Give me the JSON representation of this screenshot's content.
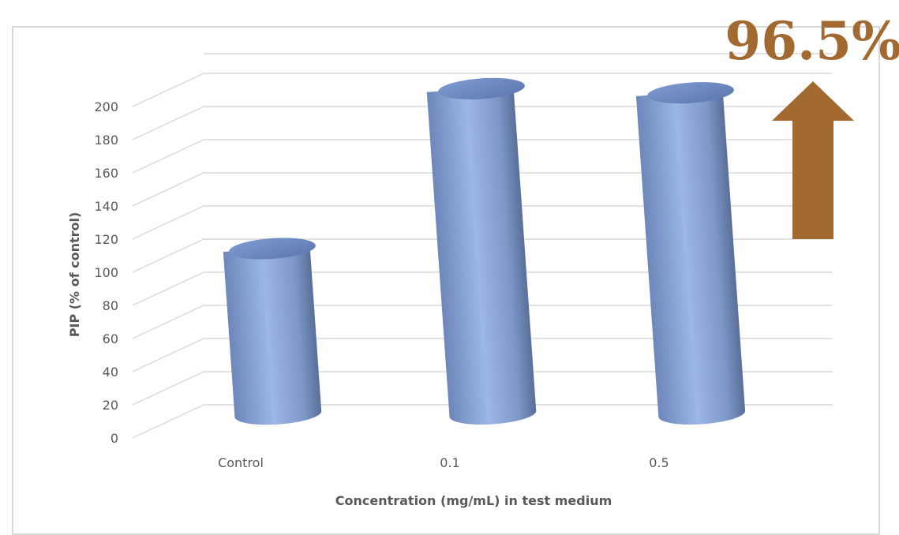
{
  "chart_data": {
    "type": "bar",
    "style": "3d-cylinder",
    "categories": [
      "Control",
      "0.1",
      "0.5"
    ],
    "values": [
      100,
      196.5,
      194
    ],
    "xlabel": "Concentration (mg/mL) in test medium",
    "ylabel": "PIP (% of control)",
    "ylim": [
      0,
      200
    ],
    "yticks": [
      0,
      20,
      40,
      60,
      80,
      100,
      120,
      140,
      160,
      180,
      200
    ],
    "grid": true,
    "legend": "none",
    "annotation": {
      "text": "96.5%",
      "icon": "up-arrow-icon",
      "color": "#a26a30"
    },
    "colors": {
      "bar": "#8faadc",
      "grid": "#d9d9d9",
      "text": "#595959"
    }
  }
}
